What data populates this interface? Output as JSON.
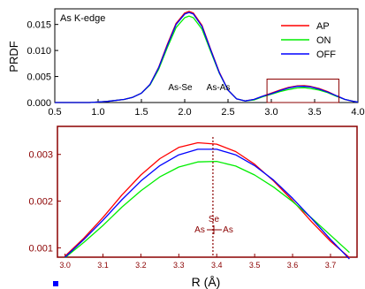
{
  "chart_data": [
    {
      "type": "line",
      "title": "As K-edge",
      "ylabel": "PRDF",
      "xlim": [
        0.5,
        4.0
      ],
      "ylim": [
        0.0,
        0.018
      ],
      "xticks": [
        "0.5",
        "1.0",
        "1.5",
        "2.0",
        "2.5",
        "3.0",
        "3.5",
        "4.0"
      ],
      "yticks": [
        "0.000",
        "0.005",
        "0.010",
        "0.015"
      ],
      "legend": [
        "AP",
        "ON",
        "OFF"
      ],
      "legend_position": "top-right",
      "annotations": [
        "As-Se",
        "As-As"
      ],
      "series": [
        {
          "name": "AP",
          "color": "#ff0000",
          "x": [
            0.5,
            0.9,
            1.1,
            1.3,
            1.4,
            1.5,
            1.6,
            1.7,
            1.8,
            1.9,
            2.0,
            2.05,
            2.1,
            2.2,
            2.3,
            2.4,
            2.5,
            2.6,
            2.7,
            2.8,
            2.9,
            3.0,
            3.1,
            3.2,
            3.3,
            3.38,
            3.45,
            3.55,
            3.65,
            3.75,
            3.85,
            3.95,
            4.0
          ],
          "y": [
            0.0,
            0.0,
            0.0002,
            0.0006,
            0.001,
            0.0018,
            0.0035,
            0.0068,
            0.0112,
            0.0152,
            0.0172,
            0.0175,
            0.0172,
            0.0148,
            0.0102,
            0.0058,
            0.0024,
            0.0007,
            0.0003,
            0.0006,
            0.0012,
            0.0018,
            0.0024,
            0.0029,
            0.0032,
            0.00325,
            0.0031,
            0.0027,
            0.0021,
            0.0013,
            0.0006,
            0.0002,
            0.0001
          ]
        },
        {
          "name": "ON",
          "color": "#00ee00",
          "x": [
            0.5,
            0.9,
            1.1,
            1.3,
            1.4,
            1.5,
            1.6,
            1.7,
            1.8,
            1.9,
            2.0,
            2.05,
            2.1,
            2.2,
            2.3,
            2.4,
            2.5,
            2.6,
            2.7,
            2.8,
            2.9,
            3.0,
            3.1,
            3.2,
            3.3,
            3.38,
            3.45,
            3.55,
            3.65,
            3.75,
            3.85,
            3.95,
            4.0
          ],
          "y": [
            0.0,
            0.0,
            0.0002,
            0.0006,
            0.001,
            0.0018,
            0.0034,
            0.0064,
            0.0106,
            0.0144,
            0.0163,
            0.0166,
            0.0163,
            0.0141,
            0.0098,
            0.0056,
            0.0024,
            0.0007,
            0.0003,
            0.0005,
            0.0011,
            0.0016,
            0.0021,
            0.0025,
            0.0028,
            0.00285,
            0.0027,
            0.0024,
            0.0019,
            0.0012,
            0.0006,
            0.0002,
            0.0001
          ]
        },
        {
          "name": "OFF",
          "color": "#0000ff",
          "x": [
            0.5,
            0.9,
            1.1,
            1.3,
            1.4,
            1.5,
            1.6,
            1.7,
            1.8,
            1.9,
            2.0,
            2.05,
            2.1,
            2.2,
            2.3,
            2.4,
            2.5,
            2.6,
            2.7,
            2.8,
            2.9,
            3.0,
            3.1,
            3.2,
            3.3,
            3.38,
            3.45,
            3.55,
            3.65,
            3.75,
            3.85,
            3.95,
            4.0
          ],
          "y": [
            0.0,
            0.0,
            0.0002,
            0.0006,
            0.001,
            0.0018,
            0.0035,
            0.0067,
            0.011,
            0.015,
            0.017,
            0.0173,
            0.017,
            0.0146,
            0.0101,
            0.0057,
            0.0024,
            0.0007,
            0.0003,
            0.0006,
            0.0012,
            0.0017,
            0.0023,
            0.0028,
            0.0031,
            0.0031,
            0.003,
            0.0026,
            0.002,
            0.0013,
            0.0006,
            0.0002,
            0.0001
          ]
        }
      ],
      "highlight_box": {
        "x": [
          2.95,
          3.78
        ],
        "y": [
          0.0,
          0.0045
        ],
        "color": "#8b0000"
      }
    },
    {
      "type": "line",
      "xlabel": "R (Å)",
      "xlim": [
        2.98,
        3.77
      ],
      "ylim": [
        0.0008,
        0.0036
      ],
      "xticks": [
        "3.0",
        "3.1",
        "3.2",
        "3.3",
        "3.4",
        "3.5",
        "3.6",
        "3.7"
      ],
      "yticks": [
        "0.001",
        "0.002",
        "0.003"
      ],
      "annotations": [
        "Se",
        "As",
        "As"
      ],
      "vline_x": 3.39,
      "series": [
        {
          "name": "AP",
          "color": "#ff0000",
          "x": [
            3.0,
            3.05,
            3.1,
            3.15,
            3.2,
            3.25,
            3.3,
            3.35,
            3.4,
            3.45,
            3.5,
            3.55,
            3.6,
            3.65,
            3.7,
            3.75
          ],
          "y": [
            0.00082,
            0.00121,
            0.00165,
            0.00213,
            0.00256,
            0.00291,
            0.00315,
            0.00325,
            0.00322,
            0.00306,
            0.00279,
            0.00243,
            0.00201,
            0.00156,
            0.00114,
            0.00079
          ]
        },
        {
          "name": "ON",
          "color": "#00ee00",
          "x": [
            3.0,
            3.05,
            3.1,
            3.15,
            3.2,
            3.25,
            3.3,
            3.35,
            3.4,
            3.45,
            3.5,
            3.55,
            3.6,
            3.65,
            3.7,
            3.75
          ],
          "y": [
            0.00079,
            0.00112,
            0.00148,
            0.00187,
            0.00222,
            0.00252,
            0.00273,
            0.00284,
            0.00285,
            0.00275,
            0.00256,
            0.0023,
            0.00199,
            0.00164,
            0.00127,
            0.0009
          ]
        },
        {
          "name": "OFF",
          "color": "#0000ff",
          "x": [
            3.0,
            3.05,
            3.1,
            3.15,
            3.2,
            3.25,
            3.3,
            3.35,
            3.4,
            3.45,
            3.5,
            3.55,
            3.6,
            3.65,
            3.7,
            3.75
          ],
          "y": [
            0.0008,
            0.00118,
            0.00159,
            0.00203,
            0.00243,
            0.00276,
            0.00299,
            0.00311,
            0.00311,
            0.00299,
            0.00276,
            0.00245,
            0.00206,
            0.00163,
            0.00118,
            0.00076
          ]
        }
      ]
    }
  ]
}
